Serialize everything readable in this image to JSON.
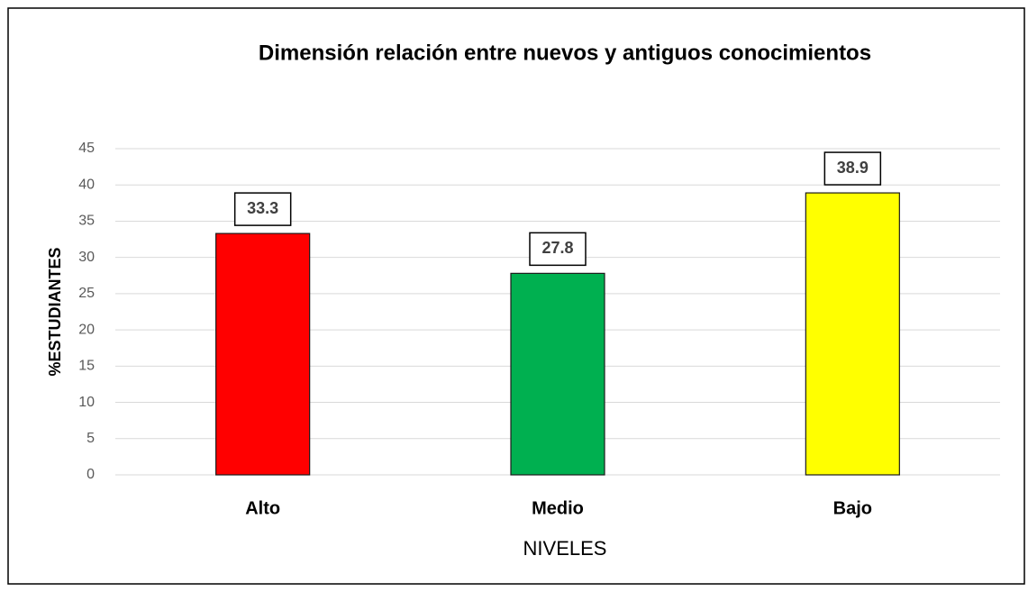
{
  "chart_data": {
    "type": "bar",
    "title": "Dimensión relación entre nuevos y antiguos conocimientos",
    "x_label": "NIVELES",
    "y_label": "%ESTUDIANTES",
    "categories": [
      "Alto",
      "Medio",
      "Bajo"
    ],
    "values": [
      33.3,
      27.8,
      38.9
    ],
    "colors": [
      "#ff0000",
      "#00b050",
      "#ffff00"
    ],
    "ylim": [
      0,
      45
    ],
    "yticks": [
      0,
      5,
      10,
      15,
      20,
      25,
      30,
      35,
      40,
      45
    ],
    "grid": true
  }
}
